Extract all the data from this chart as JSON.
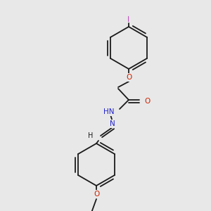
{
  "background_color": "#e8e8e8",
  "line_color": "#1a1a1a",
  "bond_lw": 1.3,
  "atoms": {
    "I": {
      "color": "#bb44bb"
    },
    "O": {
      "color": "#cc2200"
    },
    "N": {
      "color": "#2222cc"
    },
    "H": {
      "color": "#1a1a1a"
    }
  },
  "fontsize": 7.5,
  "fig_size": [
    3.0,
    3.0
  ],
  "dpi": 100
}
